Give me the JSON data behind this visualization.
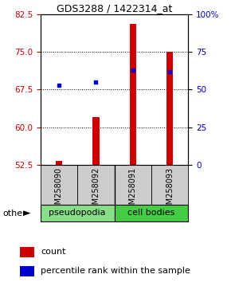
{
  "title": "GDS3288 / 1422314_at",
  "samples": [
    "GSM258090",
    "GSM258092",
    "GSM258091",
    "GSM258093"
  ],
  "bar_values": [
    53.3,
    62.0,
    80.5,
    75.0
  ],
  "bar_bottom": 52.5,
  "percentile_pct": [
    53,
    55,
    63,
    62
  ],
  "ylim_left": [
    52.5,
    82.5
  ],
  "ylim_right": [
    0,
    100
  ],
  "yticks_left": [
    52.5,
    60.0,
    67.5,
    75.0,
    82.5
  ],
  "yticks_right": [
    0,
    25,
    50,
    75,
    100
  ],
  "bar_color": "#cc0000",
  "dot_color": "#0000cc",
  "pseudopodia_color": "#88dd88",
  "cell_bodies_color": "#44cc44",
  "left_label_color": "#cc0000",
  "right_label_color": "#0000bb",
  "bar_width": 0.18,
  "group_border_color": "#000000",
  "label_box_color": "#cccccc"
}
